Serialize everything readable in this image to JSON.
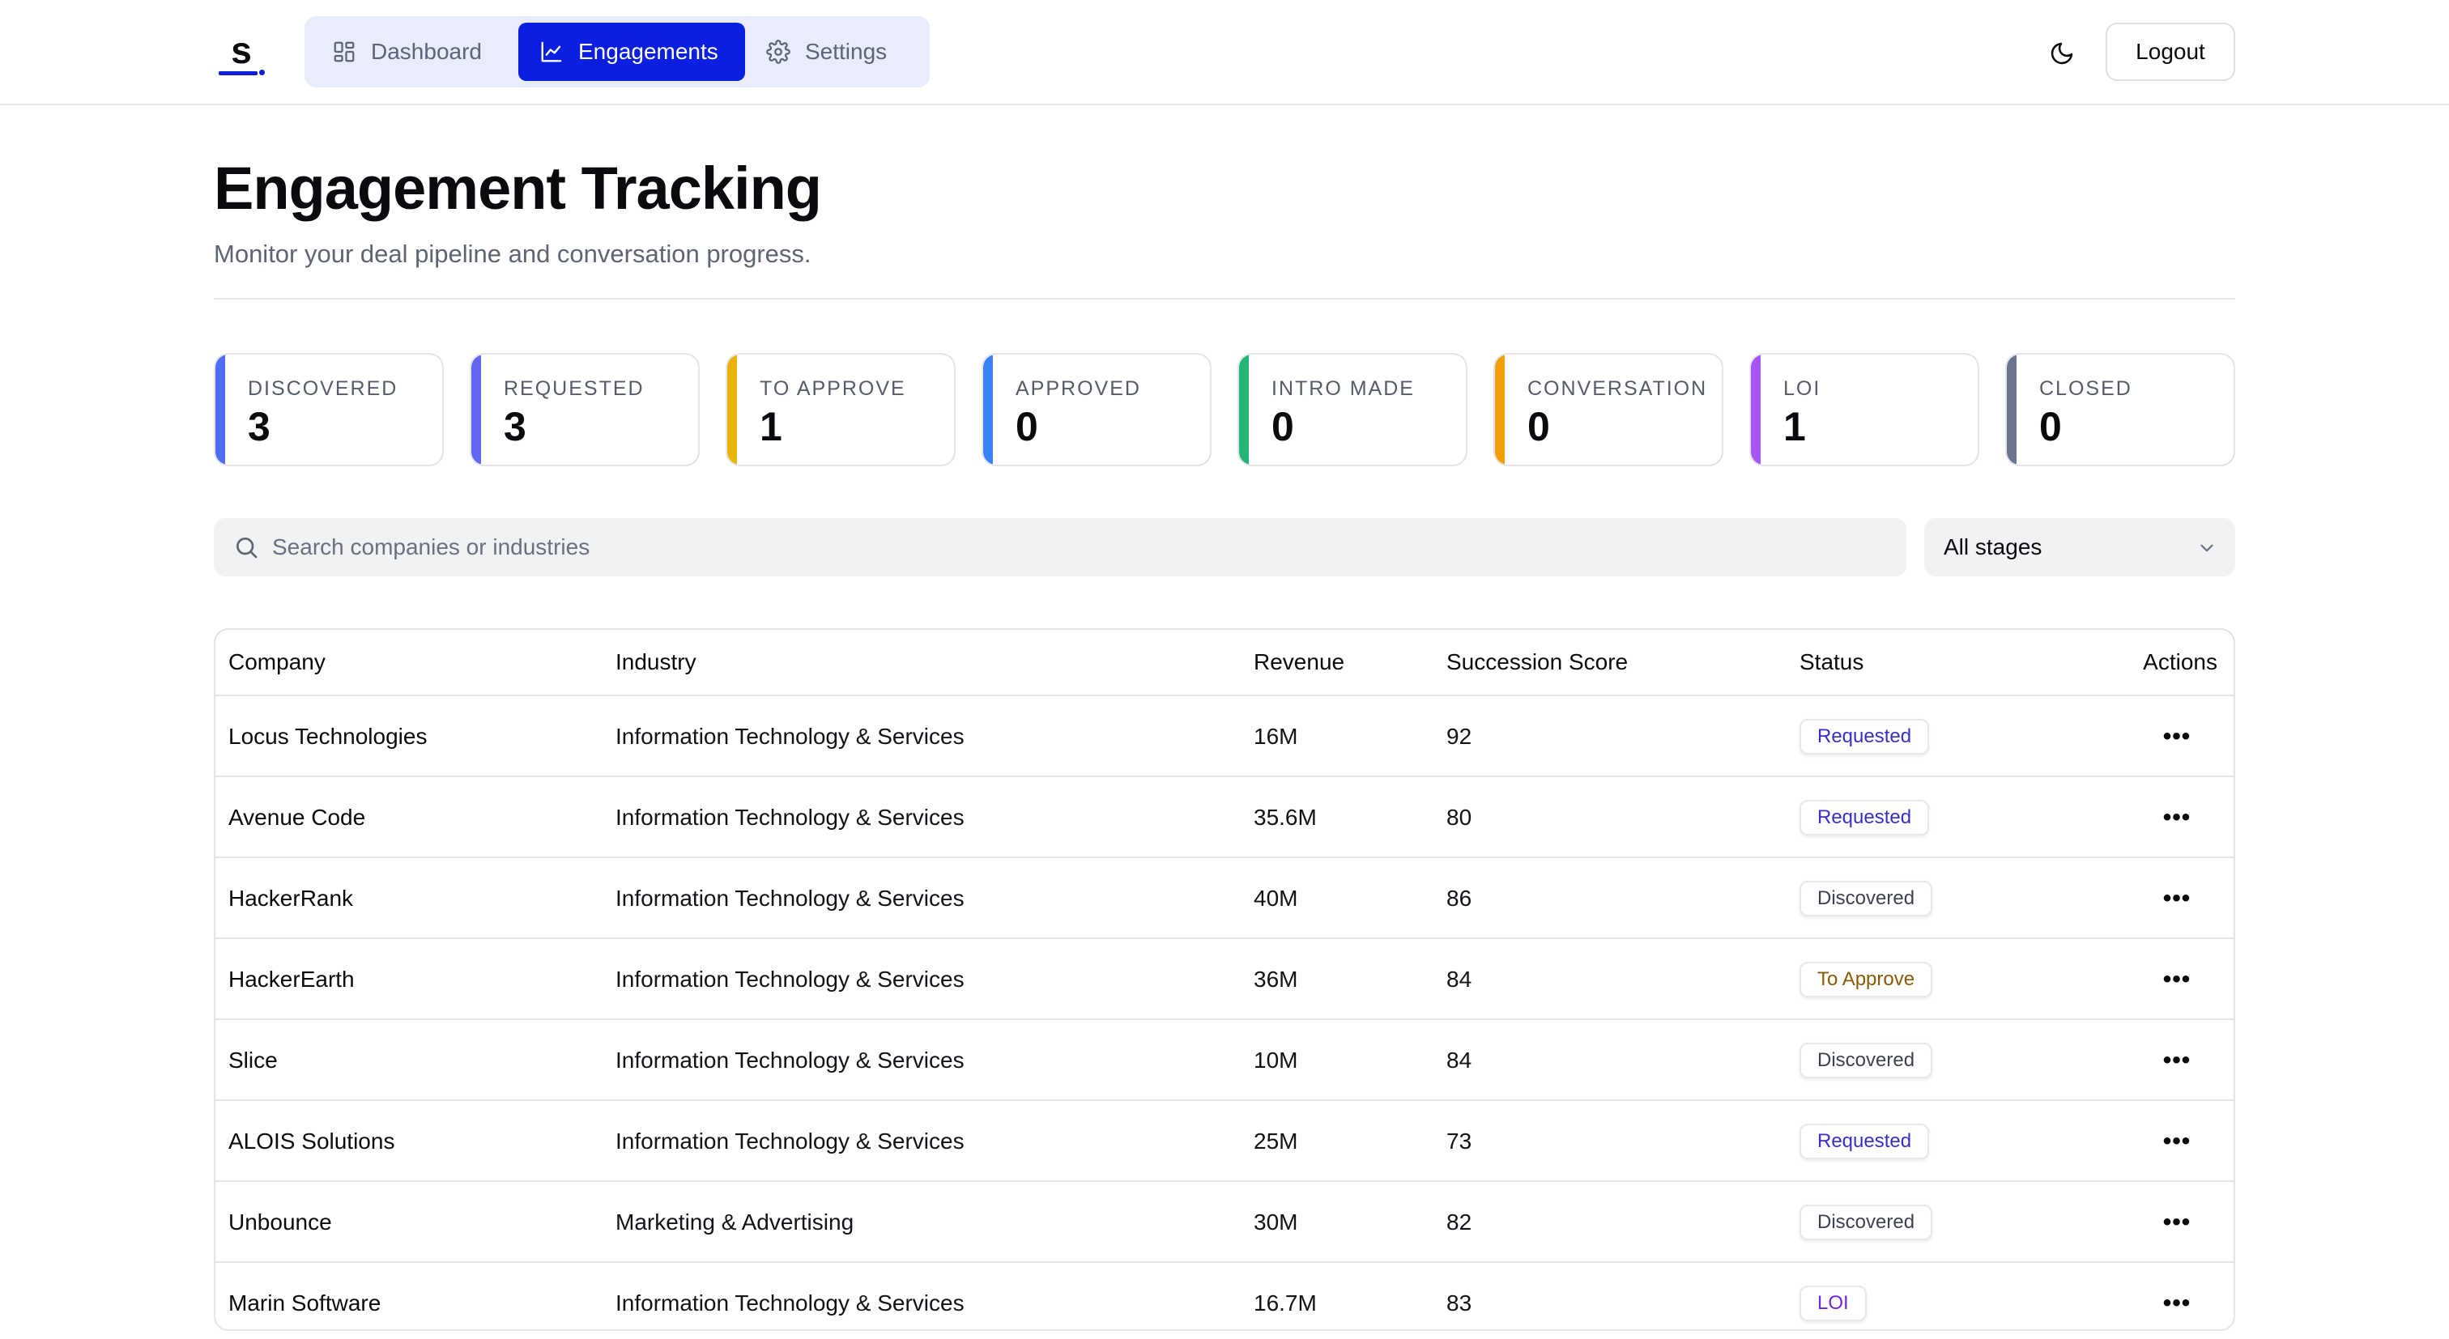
{
  "brand": {
    "logo_letter": "s",
    "accent": "#0a1fe0"
  },
  "nav": {
    "items": [
      {
        "label": "Dashboard",
        "icon": "grid-icon",
        "active": false
      },
      {
        "label": "Engagements",
        "icon": "chart-line-icon",
        "active": true
      },
      {
        "label": "Settings",
        "icon": "gear-icon",
        "active": false
      }
    ]
  },
  "header": {
    "theme_icon": "moon-icon",
    "logout_label": "Logout"
  },
  "page": {
    "title": "Engagement Tracking",
    "subtitle": "Monitor your deal pipeline and conversation progress."
  },
  "stages": [
    {
      "label": "DISCOVERED",
      "count": "3",
      "color": "#4f6ef7"
    },
    {
      "label": "REQUESTED",
      "count": "3",
      "color": "#6366f1"
    },
    {
      "label": "TO APPROVE",
      "count": "1",
      "color": "#eab308"
    },
    {
      "label": "APPROVED",
      "count": "0",
      "color": "#3b82f6"
    },
    {
      "label": "INTRO MADE",
      "count": "0",
      "color": "#22b574"
    },
    {
      "label": "CONVERSATION",
      "count": "0",
      "color": "#f59e0b"
    },
    {
      "label": "LOI",
      "count": "1",
      "color": "#a855f7"
    },
    {
      "label": "CLOSED",
      "count": "0",
      "color": "#6b7590"
    }
  ],
  "filters": {
    "search_placeholder": "Search companies or industries",
    "search_value": "",
    "stage_select": "All stages"
  },
  "table": {
    "columns": {
      "company": "Company",
      "industry": "Industry",
      "revenue": "Revenue",
      "score": "Succession Score",
      "status": "Status",
      "actions": "Actions"
    },
    "rows": [
      {
        "company": "Locus Technologies",
        "industry": "Information Technology & Services",
        "revenue": "16M",
        "score": "92",
        "status": "Requested",
        "status_color": "#3730c8"
      },
      {
        "company": "Avenue Code",
        "industry": "Information Technology & Services",
        "revenue": "35.6M",
        "score": "80",
        "status": "Requested",
        "status_color": "#3730c8"
      },
      {
        "company": "HackerRank",
        "industry": "Information Technology & Services",
        "revenue": "40M",
        "score": "86",
        "status": "Discovered",
        "status_color": "#3d4150"
      },
      {
        "company": "HackerEarth",
        "industry": "Information Technology & Services",
        "revenue": "36M",
        "score": "84",
        "status": "To Approve",
        "status_color": "#8a5a07"
      },
      {
        "company": "Slice",
        "industry": "Information Technology & Services",
        "revenue": "10M",
        "score": "84",
        "status": "Discovered",
        "status_color": "#3d4150"
      },
      {
        "company": "ALOIS Solutions",
        "industry": "Information Technology & Services",
        "revenue": "25M",
        "score": "73",
        "status": "Requested",
        "status_color": "#3730c8"
      },
      {
        "company": "Unbounce",
        "industry": "Marketing & Advertising",
        "revenue": "30M",
        "score": "82",
        "status": "Discovered",
        "status_color": "#3d4150"
      },
      {
        "company": "Marin Software",
        "industry": "Information Technology & Services",
        "revenue": "16.7M",
        "score": "83",
        "status": "LOI",
        "status_color": "#6d28d9"
      }
    ],
    "row_action_icon": "more-horizontal-icon",
    "row_action_glyph": "•••"
  }
}
